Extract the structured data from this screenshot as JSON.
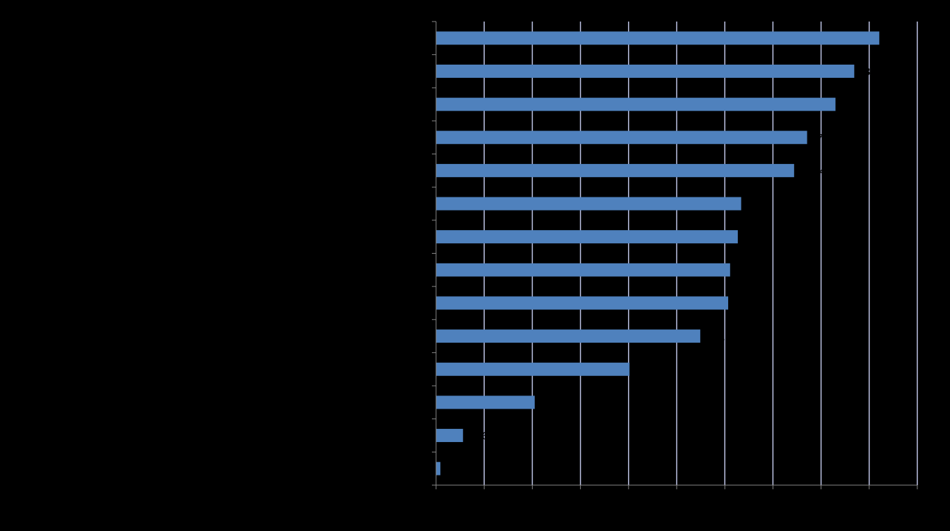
{
  "chart_data": {
    "type": "bar",
    "orientation": "horizontal",
    "title": "",
    "xlabel": "",
    "ylabel": "",
    "xlim": [
      0,
      100
    ],
    "grid": true,
    "legend": "none",
    "categories": [
      "",
      "",
      "",
      "",
      "",
      "",
      "",
      "",
      "",
      "",
      "",
      "",
      "",
      ""
    ],
    "values": [
      92.1,
      86.9,
      83.0,
      77.1,
      74.4,
      63.4,
      62.7,
      61.1,
      60.7,
      54.9,
      40.2,
      20.5,
      5.6,
      0.9
    ],
    "colors": {
      "bar": "#4f81bd",
      "gridline": "#c0c6e8",
      "axis": "#888888",
      "background": "#000000",
      "text": "#000000"
    }
  }
}
